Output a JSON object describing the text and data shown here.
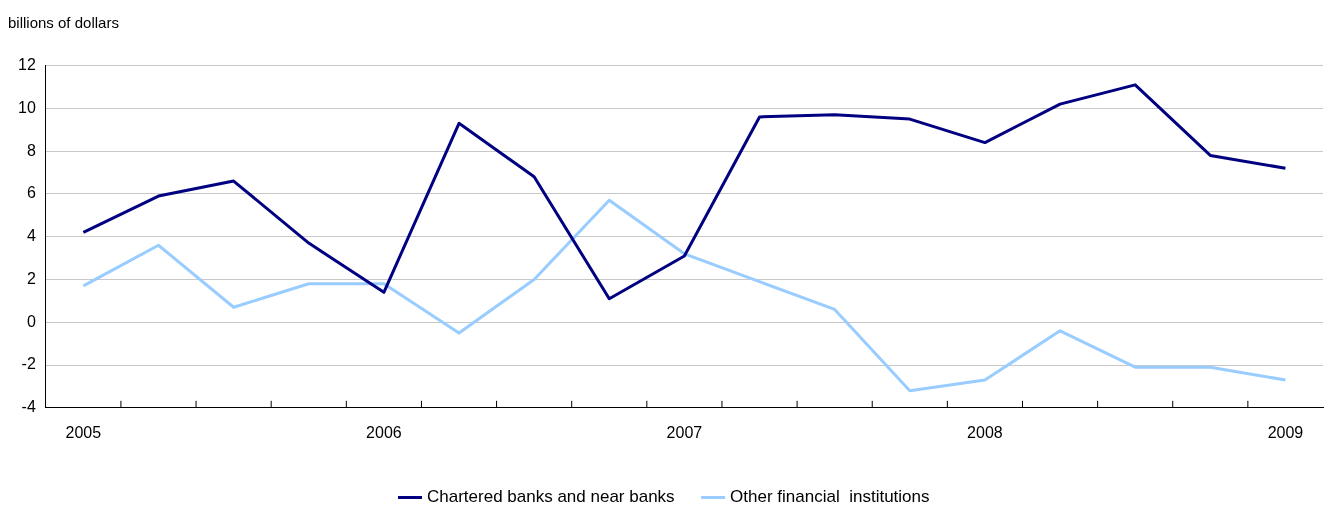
{
  "chart_data": {
    "type": "line",
    "ylabel": "billions of dollars",
    "categories": [
      "2005",
      null,
      null,
      null,
      "2006",
      null,
      null,
      null,
      "2007",
      null,
      null,
      null,
      "2008",
      null,
      null,
      null,
      "2009"
    ],
    "series": [
      {
        "name": "Chartered banks and near banks",
        "color": "#000080",
        "values": [
          4.2,
          5.9,
          6.6,
          3.7,
          1.4,
          9.3,
          6.8,
          1.1,
          3.1,
          9.6,
          9.7,
          9.5,
          8.4,
          10.2,
          11.1,
          7.8,
          7.2
        ]
      },
      {
        "name": "Other financial  institutions",
        "color": "#99ccff",
        "values": [
          1.7,
          3.6,
          0.7,
          1.8,
          1.8,
          -0.5,
          2.0,
          5.7,
          3.2,
          1.9,
          0.6,
          -3.2,
          -2.7,
          -0.4,
          -2.1,
          -2.1,
          -2.7
        ]
      }
    ],
    "ylim": [
      -4,
      12
    ],
    "yticks": [
      -4,
      -2,
      0,
      2,
      4,
      6,
      8,
      10,
      12
    ],
    "grid": "y",
    "legend": "bottom",
    "marker": "none",
    "line_style": "solid"
  }
}
